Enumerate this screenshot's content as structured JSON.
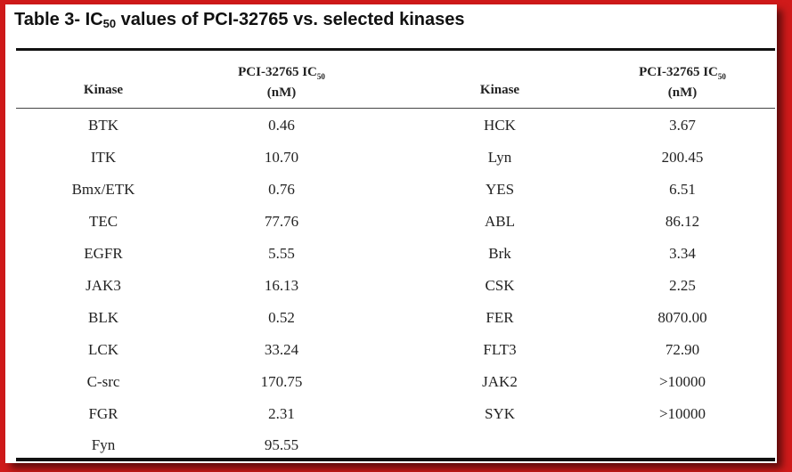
{
  "title": {
    "prefix": "Table 3- IC",
    "sub": "50",
    "suffix": " values of PCI-32765 vs. selected kinases"
  },
  "headers": {
    "kinase": "Kinase",
    "ic50_line1_prefix": "PCI-32765 IC",
    "ic50_sub": "50",
    "ic50_line2": "(nM)"
  },
  "left_rows": [
    {
      "kinase": "BTK",
      "value": "0.46"
    },
    {
      "kinase": "ITK",
      "value": "10.70"
    },
    {
      "kinase": "Bmx/ETK",
      "value": "0.76"
    },
    {
      "kinase": "TEC",
      "value": "77.76"
    },
    {
      "kinase": "EGFR",
      "value": "5.55"
    },
    {
      "kinase": "JAK3",
      "value": "16.13"
    },
    {
      "kinase": "BLK",
      "value": "0.52"
    },
    {
      "kinase": "LCK",
      "value": "33.24"
    },
    {
      "kinase": "C-src",
      "value": "170.75"
    },
    {
      "kinase": "FGR",
      "value": "2.31"
    },
    {
      "kinase": "Fyn",
      "value": "95.55"
    }
  ],
  "right_rows": [
    {
      "kinase": "HCK",
      "value": "3.67"
    },
    {
      "kinase": "Lyn",
      "value": "200.45"
    },
    {
      "kinase": "YES",
      "value": "6.51"
    },
    {
      "kinase": "ABL",
      "value": "86.12"
    },
    {
      "kinase": "Brk",
      "value": "3.34"
    },
    {
      "kinase": "CSK",
      "value": "2.25"
    },
    {
      "kinase": "FER",
      "value": "8070.00"
    },
    {
      "kinase": "FLT3",
      "value": "72.90"
    },
    {
      "kinase": "JAK2",
      "value": ">10000"
    },
    {
      "kinase": "SYK",
      "value": ">10000"
    }
  ],
  "colors": {
    "border": "#d01a1a",
    "background": "#ffffff",
    "text": "#222222"
  }
}
